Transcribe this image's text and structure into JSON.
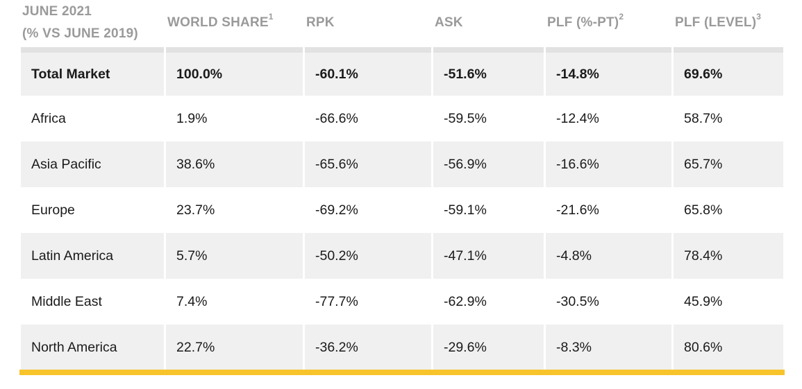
{
  "header": {
    "col0_line1": "JUNE 2021",
    "col0_line2": "(% VS JUNE 2019)",
    "col1": "WORLD SHARE",
    "col1_note": "1",
    "col2": "RPK",
    "col3": "ASK",
    "col4": "PLF (%-PT)",
    "col4_note": "2",
    "col5": "PLF (LEVEL)",
    "col5_note": "3"
  },
  "rows": [
    {
      "region": "Total Market",
      "world_share": "100.0%",
      "rpk": "-60.1%",
      "ask": "-51.6%",
      "plf_pt": "-14.8%",
      "plf_level": "69.6%"
    },
    {
      "region": "Africa",
      "world_share": "1.9%",
      "rpk": "-66.6%",
      "ask": "-59.5%",
      "plf_pt": "-12.4%",
      "plf_level": "58.7%"
    },
    {
      "region": "Asia Pacific",
      "world_share": "38.6%",
      "rpk": "-65.6%",
      "ask": "-56.9%",
      "plf_pt": "-16.6%",
      "plf_level": "65.7%"
    },
    {
      "region": "Europe",
      "world_share": "23.7%",
      "rpk": "-69.2%",
      "ask": "-59.1%",
      "plf_pt": "-21.6%",
      "plf_level": "65.8%"
    },
    {
      "region": "Latin America",
      "world_share": "5.7%",
      "rpk": "-50.2%",
      "ask": "-47.1%",
      "plf_pt": "-4.8%",
      "plf_level": "78.4%"
    },
    {
      "region": "Middle East",
      "world_share": "7.4%",
      "rpk": "-77.7%",
      "ask": "-62.9%",
      "plf_pt": "-30.5%",
      "plf_level": "45.9%"
    },
    {
      "region": "North America",
      "world_share": "22.7%",
      "rpk": "-36.2%",
      "ask": "-29.6%",
      "plf_pt": "-8.3%",
      "plf_level": "80.6%"
    }
  ],
  "colors": {
    "header_text": "#9a9a9a",
    "row_shade": "#f0f0f0",
    "accent_rule": "#f8c42c"
  }
}
